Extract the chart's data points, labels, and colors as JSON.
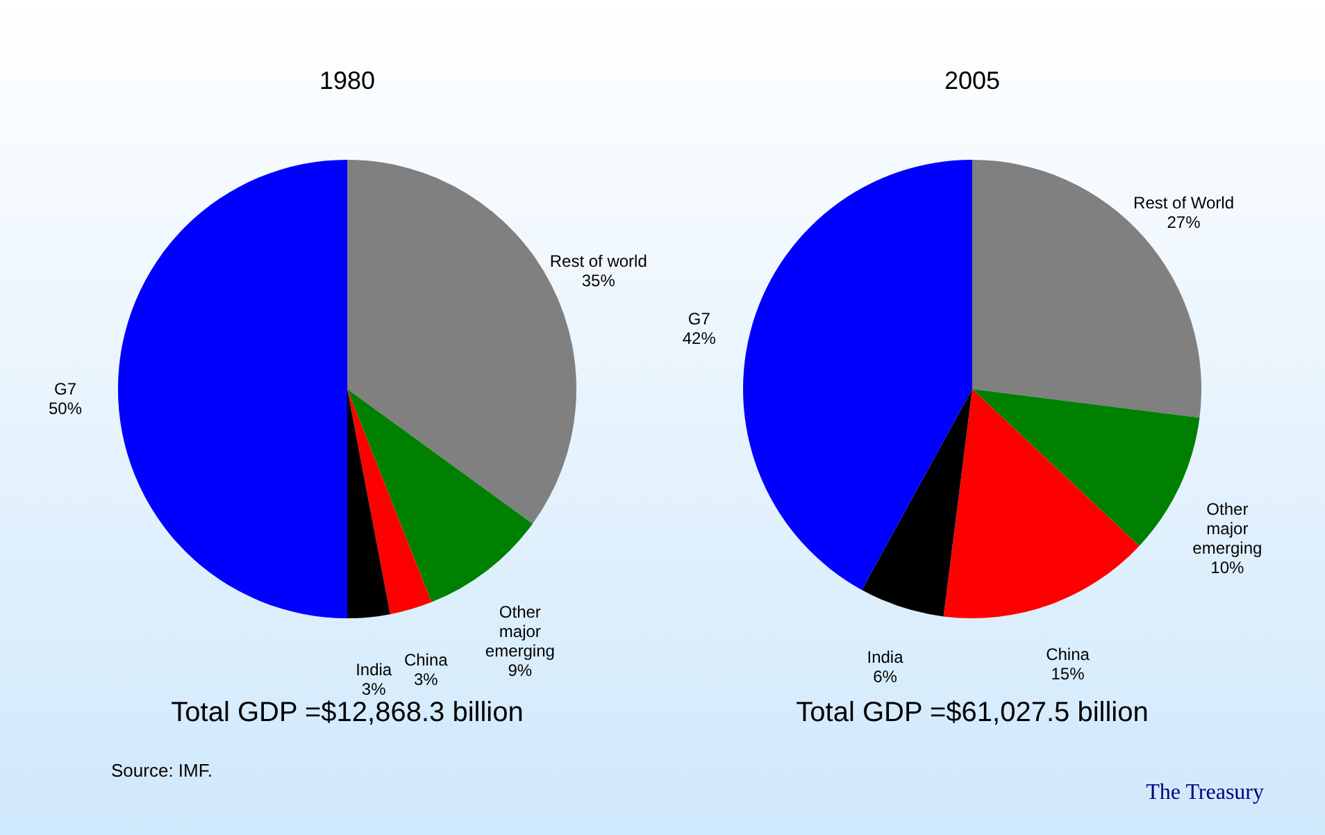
{
  "chart_data": [
    {
      "type": "pie",
      "title": "1980",
      "categories": [
        "Rest of world",
        "Other major emerging",
        "China",
        "India",
        "G7"
      ],
      "values": [
        35,
        9,
        3,
        3,
        50
      ],
      "value_labels": [
        "35%",
        "9%",
        "3%",
        "3%",
        "50%"
      ],
      "colors": [
        "#808080",
        "#008000",
        "#ff0000",
        "#000000",
        "#0000ff"
      ],
      "legend": false,
      "annotations": [
        "Total GDP =$12,868.3 billion",
        "Source:  IMF."
      ]
    },
    {
      "type": "pie",
      "title": "2005",
      "categories": [
        "Rest of World",
        "Other major emerging",
        "China",
        "India",
        "G7"
      ],
      "values": [
        27,
        10,
        15,
        6,
        42
      ],
      "value_labels": [
        "27%",
        "10%",
        "15%",
        "6%",
        "42%"
      ],
      "colors": [
        "#808080",
        "#008000",
        "#ff0000",
        "#000000",
        "#0000ff"
      ],
      "legend": false,
      "annotations": [
        "Total GDP =$61,027.5 billion",
        "The Treasury"
      ]
    }
  ]
}
